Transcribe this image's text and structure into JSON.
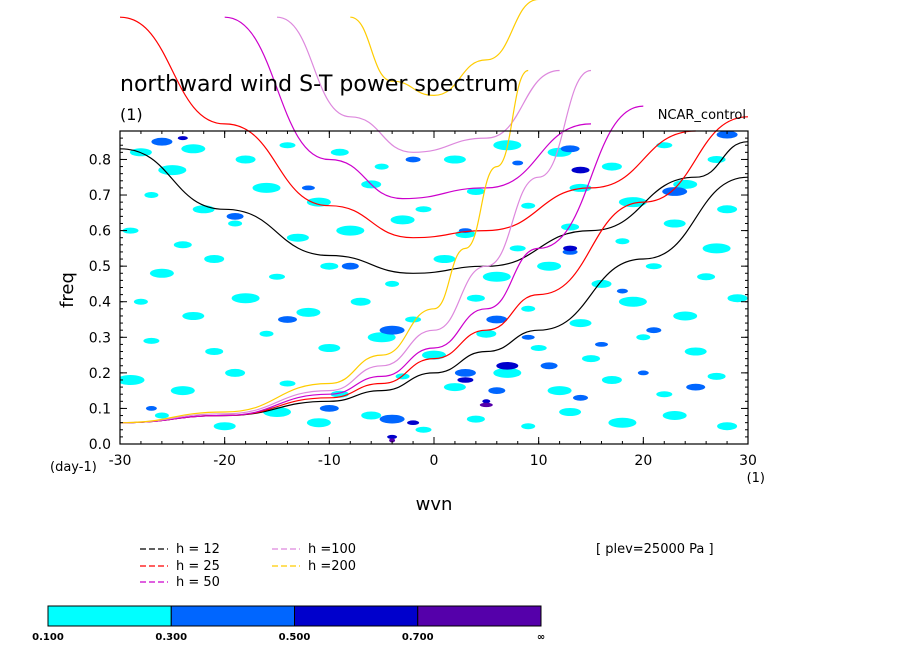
{
  "chart_data": {
    "type": "heatmap",
    "title": "northward wind S-T power spectrum",
    "subtitle_left": "(1)",
    "subtitle_right": "NCAR_control",
    "xlabel": "wvn",
    "ylabel": "freq",
    "x_unit_label": "(1)",
    "y_unit_label": "(day-1)",
    "xlim": [
      -30,
      30
    ],
    "ylim": [
      0.0,
      0.88
    ],
    "x_ticks": [
      -30,
      -20,
      -10,
      0,
      10,
      20,
      30
    ],
    "x_tick_labels": [
      "-30",
      "-20",
      "-10",
      "0",
      "10",
      "20",
      "30"
    ],
    "y_ticks": [
      0.0,
      0.1,
      0.2,
      0.3,
      0.4,
      0.5,
      0.6,
      0.7,
      0.8
    ],
    "y_tick_labels": [
      "0.0",
      "0.1",
      "0.2",
      "0.3",
      "0.4",
      "0.5",
      "0.6",
      "0.7",
      "0.8"
    ],
    "level_note": "[ plev=25000 Pa ]",
    "dispersion_curves": [
      {
        "label": "h = 12",
        "color": "#000000",
        "eq_points": [
          [
            -30,
            0.83
          ],
          [
            -20,
            0.66
          ],
          [
            -10,
            0.53
          ],
          [
            -2,
            0.48
          ],
          [
            5,
            0.5
          ],
          [
            15,
            0.6
          ],
          [
            25,
            0.75
          ],
          [
            30,
            0.85
          ]
        ],
        "kelvin_points": [
          [
            -30,
            0.06
          ],
          [
            -20,
            0.08
          ],
          [
            -10,
            0.12
          ],
          [
            -5,
            0.15
          ],
          [
            0,
            0.2
          ],
          [
            5,
            0.26
          ],
          [
            10,
            0.32
          ],
          [
            20,
            0.52
          ],
          [
            30,
            0.75
          ]
        ]
      },
      {
        "label": "h = 25",
        "color": "#ff0000",
        "eq_points": [
          [
            -30,
            1.2
          ],
          [
            -20,
            0.9
          ],
          [
            -10,
            0.67
          ],
          [
            -2,
            0.58
          ],
          [
            5,
            0.6
          ],
          [
            15,
            0.72
          ],
          [
            25,
            0.88
          ]
        ],
        "kelvin_points": [
          [
            -30,
            0.06
          ],
          [
            -20,
            0.08
          ],
          [
            -10,
            0.13
          ],
          [
            -5,
            0.17
          ],
          [
            0,
            0.24
          ],
          [
            5,
            0.32
          ],
          [
            10,
            0.42
          ],
          [
            20,
            0.68
          ],
          [
            30,
            0.92
          ]
        ]
      },
      {
        "label": "h = 50",
        "color": "#cc00cc",
        "eq_points": [
          [
            -20,
            1.2
          ],
          [
            -10,
            0.8
          ],
          [
            -3,
            0.69
          ],
          [
            5,
            0.72
          ],
          [
            15,
            0.9
          ]
        ],
        "kelvin_points": [
          [
            -30,
            0.06
          ],
          [
            -20,
            0.08
          ],
          [
            -10,
            0.14
          ],
          [
            -5,
            0.19
          ],
          [
            0,
            0.27
          ],
          [
            5,
            0.38
          ],
          [
            10,
            0.55
          ],
          [
            20,
            0.95
          ]
        ]
      },
      {
        "label": "h =100",
        "color": "#dd88dd",
        "eq_points": [
          [
            -15,
            1.2
          ],
          [
            -8,
            0.92
          ],
          [
            -2,
            0.82
          ],
          [
            5,
            0.86
          ],
          [
            12,
            1.05
          ]
        ],
        "kelvin_points": [
          [
            -30,
            0.06
          ],
          [
            -20,
            0.085
          ],
          [
            -10,
            0.15
          ],
          [
            -5,
            0.22
          ],
          [
            0,
            0.32
          ],
          [
            5,
            0.5
          ],
          [
            10,
            0.75
          ],
          [
            15,
            1.05
          ]
        ]
      },
      {
        "label": "h =200",
        "color": "#ffcc00",
        "eq_points": [
          [
            -8,
            1.2
          ],
          [
            -4,
            1.02
          ],
          [
            0,
            0.98
          ],
          [
            5,
            1.08
          ],
          [
            10,
            1.25
          ]
        ],
        "kelvin_points": [
          [
            -30,
            0.06
          ],
          [
            -20,
            0.09
          ],
          [
            -10,
            0.17
          ],
          [
            -5,
            0.25
          ],
          [
            0,
            0.38
          ],
          [
            3,
            0.55
          ],
          [
            6,
            0.78
          ],
          [
            9,
            1.05
          ]
        ]
      }
    ],
    "contour_levels": [
      "0.100",
      "0.300",
      "0.500",
      "0.700",
      "∞"
    ],
    "colorbar_colors": [
      "#00ffff",
      "#0066ff",
      "#0000cc",
      "#5500aa"
    ],
    "series": [
      {
        "name": "0.100-0.300",
        "color": "#00ffff",
        "points": [
          [
            -28,
            0.82
          ],
          [
            -25,
            0.77
          ],
          [
            -23,
            0.83
          ],
          [
            -18,
            0.8
          ],
          [
            -14,
            0.84
          ],
          [
            -9,
            0.82
          ],
          [
            -5,
            0.78
          ],
          [
            2,
            0.8
          ],
          [
            7,
            0.84
          ],
          [
            12,
            0.82
          ],
          [
            17,
            0.78
          ],
          [
            22,
            0.84
          ],
          [
            27,
            0.8
          ],
          [
            -27,
            0.7
          ],
          [
            -22,
            0.66
          ],
          [
            -16,
            0.72
          ],
          [
            -11,
            0.68
          ],
          [
            -6,
            0.73
          ],
          [
            -1,
            0.66
          ],
          [
            4,
            0.71
          ],
          [
            9,
            0.67
          ],
          [
            14,
            0.72
          ],
          [
            19,
            0.68
          ],
          [
            24,
            0.73
          ],
          [
            28,
            0.66
          ],
          [
            -29,
            0.6
          ],
          [
            -24,
            0.56
          ],
          [
            -19,
            0.62
          ],
          [
            -13,
            0.58
          ],
          [
            -8,
            0.6
          ],
          [
            -3,
            0.63
          ],
          [
            3,
            0.59
          ],
          [
            8,
            0.55
          ],
          [
            13,
            0.61
          ],
          [
            18,
            0.57
          ],
          [
            23,
            0.62
          ],
          [
            27,
            0.55
          ],
          [
            -26,
            0.48
          ],
          [
            -21,
            0.52
          ],
          [
            -15,
            0.47
          ],
          [
            -10,
            0.5
          ],
          [
            -4,
            0.45
          ],
          [
            1,
            0.52
          ],
          [
            6,
            0.47
          ],
          [
            11,
            0.5
          ],
          [
            16,
            0.45
          ],
          [
            21,
            0.5
          ],
          [
            26,
            0.47
          ],
          [
            -28,
            0.4
          ],
          [
            -23,
            0.36
          ],
          [
            -18,
            0.41
          ],
          [
            -12,
            0.37
          ],
          [
            -7,
            0.4
          ],
          [
            -2,
            0.35
          ],
          [
            4,
            0.41
          ],
          [
            9,
            0.38
          ],
          [
            14,
            0.34
          ],
          [
            19,
            0.4
          ],
          [
            24,
            0.36
          ],
          [
            29,
            0.41
          ],
          [
            -27,
            0.29
          ],
          [
            -21,
            0.26
          ],
          [
            -16,
            0.31
          ],
          [
            -10,
            0.27
          ],
          [
            -5,
            0.3
          ],
          [
            0,
            0.25
          ],
          [
            5,
            0.31
          ],
          [
            10,
            0.27
          ],
          [
            15,
            0.24
          ],
          [
            20,
            0.3
          ],
          [
            25,
            0.26
          ],
          [
            -29,
            0.18
          ],
          [
            -24,
            0.15
          ],
          [
            -19,
            0.2
          ],
          [
            -14,
            0.17
          ],
          [
            -9,
            0.14
          ],
          [
            -3,
            0.19
          ],
          [
            2,
            0.16
          ],
          [
            7,
            0.2
          ],
          [
            12,
            0.15
          ],
          [
            17,
            0.18
          ],
          [
            22,
            0.14
          ],
          [
            27,
            0.19
          ],
          [
            -26,
            0.08
          ],
          [
            -20,
            0.05
          ],
          [
            -15,
            0.09
          ],
          [
            -11,
            0.06
          ],
          [
            -6,
            0.08
          ],
          [
            -1,
            0.04
          ],
          [
            4,
            0.07
          ],
          [
            9,
            0.05
          ],
          [
            13,
            0.09
          ],
          [
            18,
            0.06
          ],
          [
            23,
            0.08
          ],
          [
            28,
            0.05
          ]
        ]
      },
      {
        "name": "0.300-0.500",
        "color": "#0066ff",
        "points": [
          [
            -26,
            0.85
          ],
          [
            -19,
            0.64
          ],
          [
            -12,
            0.72
          ],
          [
            -2,
            0.8
          ],
          [
            8,
            0.79
          ],
          [
            13,
            0.83
          ],
          [
            23,
            0.71
          ],
          [
            28,
            0.87
          ],
          [
            -8,
            0.5
          ],
          [
            3,
            0.6
          ],
          [
            13,
            0.54
          ],
          [
            18,
            0.43
          ],
          [
            -14,
            0.35
          ],
          [
            -4,
            0.32
          ],
          [
            6,
            0.35
          ],
          [
            11,
            0.22
          ],
          [
            16,
            0.28
          ],
          [
            21,
            0.32
          ],
          [
            -27,
            0.1
          ],
          [
            -10,
            0.1
          ],
          [
            -4,
            0.07
          ],
          [
            3,
            0.2
          ],
          [
            6,
            0.15
          ],
          [
            9,
            0.3
          ],
          [
            14,
            0.13
          ],
          [
            20,
            0.2
          ],
          [
            25,
            0.16
          ]
        ]
      },
      {
        "name": "0.500-0.700",
        "color": "#0000cc",
        "points": [
          [
            -4,
            0.02
          ],
          [
            -2,
            0.06
          ],
          [
            5,
            0.12
          ],
          [
            3,
            0.18
          ],
          [
            7,
            0.22
          ],
          [
            14,
            0.77
          ],
          [
            13,
            0.55
          ],
          [
            -24,
            0.86
          ]
        ]
      },
      {
        "name": "0.700-∞",
        "color": "#5500aa",
        "points": [
          [
            -4,
            0.01
          ],
          [
            5,
            0.11
          ]
        ]
      }
    ]
  }
}
